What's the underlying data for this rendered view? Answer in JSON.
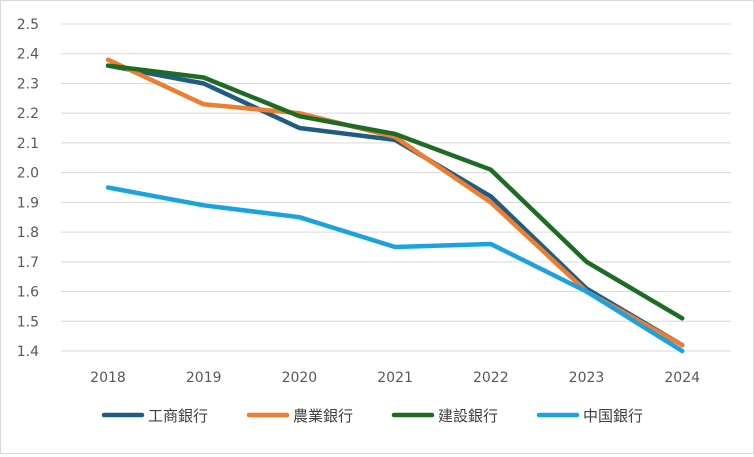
{
  "chart_data": {
    "type": "line",
    "title": "",
    "xlabel": "",
    "ylabel": "",
    "categories": [
      "2018",
      "2019",
      "2020",
      "2021",
      "2022",
      "2023",
      "2024"
    ],
    "ylim": [
      1.4,
      2.5
    ],
    "yticks": [
      "1.4",
      "1.5",
      "1.6",
      "1.7",
      "1.8",
      "1.9",
      "2.0",
      "2.1",
      "2.2",
      "2.3",
      "2.4",
      "2.5"
    ],
    "grid": true,
    "legend_position": "bottom",
    "series": [
      {
        "name": "工商銀行",
        "color": "#1f5c82",
        "values": [
          2.36,
          2.3,
          2.15,
          2.11,
          1.92,
          1.61,
          1.42
        ]
      },
      {
        "name": "農業銀行",
        "color": "#ed7d31",
        "values": [
          2.38,
          2.23,
          2.2,
          2.12,
          1.9,
          1.6,
          1.42
        ]
      },
      {
        "name": "建設銀行",
        "color": "#1e6b24",
        "values": [
          2.36,
          2.32,
          2.19,
          2.13,
          2.01,
          1.7,
          1.51
        ]
      },
      {
        "name": "中国銀行",
        "color": "#1ba3e0",
        "values": [
          1.95,
          1.89,
          1.85,
          1.75,
          1.76,
          1.6,
          1.4
        ]
      }
    ]
  }
}
